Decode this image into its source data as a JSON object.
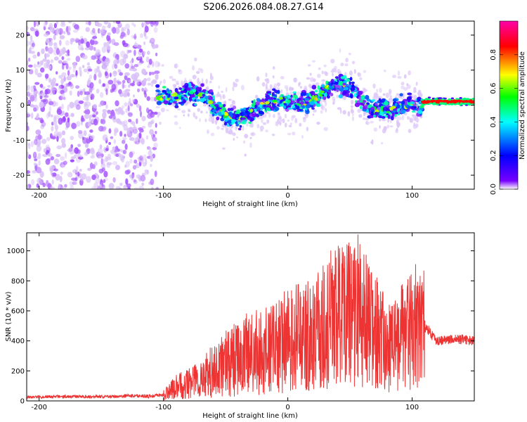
{
  "chart_data": [
    {
      "type": "heatmap",
      "title": "S206.2026.084.08.27.G14",
      "xlabel": "Height of straight line (km)",
      "ylabel": "Frequency (Hz)",
      "xlim": [
        -210,
        150
      ],
      "ylim": [
        -24,
        24
      ],
      "x_ticks": [
        -200,
        -100,
        0,
        100
      ],
      "y_ticks": [
        -20,
        -10,
        0,
        10,
        20
      ],
      "colorbar": {
        "label": "Normalized spectral amplitude",
        "range": [
          0,
          1
        ],
        "ticks": [
          "0.0",
          "0.2",
          "0.4",
          "0.6",
          "0.8"
        ],
        "colors": [
          "#ffffff",
          "#7700ff",
          "#0000ff",
          "#00ffff",
          "#00ff00",
          "#ffff00",
          "#ff0000",
          "#ff00aa"
        ]
      },
      "regions": [
        {
          "name": "scattered noise",
          "x_range": [
            -210,
            -105
          ],
          "freq_range": [
            -24,
            24
          ],
          "amplitude": 0.1
        },
        {
          "name": "signal band",
          "x_range": [
            -105,
            108
          ],
          "center_freq": 1,
          "amplitude": 0.3
        },
        {
          "name": "strong tail",
          "x_range": [
            108,
            150
          ],
          "center_freq": 1,
          "amplitude": 0.85
        }
      ]
    },
    {
      "type": "line",
      "xlabel": "Height of straight line (km)",
      "ylabel": "SNR (10 * v/v)",
      "xlim": [
        -210,
        150
      ],
      "ylim": [
        0,
        1120
      ],
      "x_ticks": [
        -200,
        -100,
        0,
        100
      ],
      "y_ticks": [
        0,
        200,
        400,
        600,
        800,
        1000
      ],
      "series": [
        {
          "name": "SNR",
          "color": "#ee3333",
          "x": [
            -210,
            -180,
            -150,
            -120,
            -110,
            -100,
            -90,
            -80,
            -70,
            -60,
            -50,
            -40,
            -30,
            -20,
            -10,
            0,
            10,
            20,
            30,
            40,
            50,
            60,
            70,
            80,
            90,
            100,
            110,
            120,
            130,
            140,
            150
          ],
          "values": [
            25,
            30,
            28,
            35,
            30,
            40,
            90,
            120,
            150,
            200,
            250,
            280,
            320,
            320,
            350,
            400,
            430,
            450,
            480,
            560,
            600,
            560,
            480,
            350,
            420,
            460,
            500,
            400,
            410,
            410,
            400
          ]
        }
      ]
    }
  ]
}
